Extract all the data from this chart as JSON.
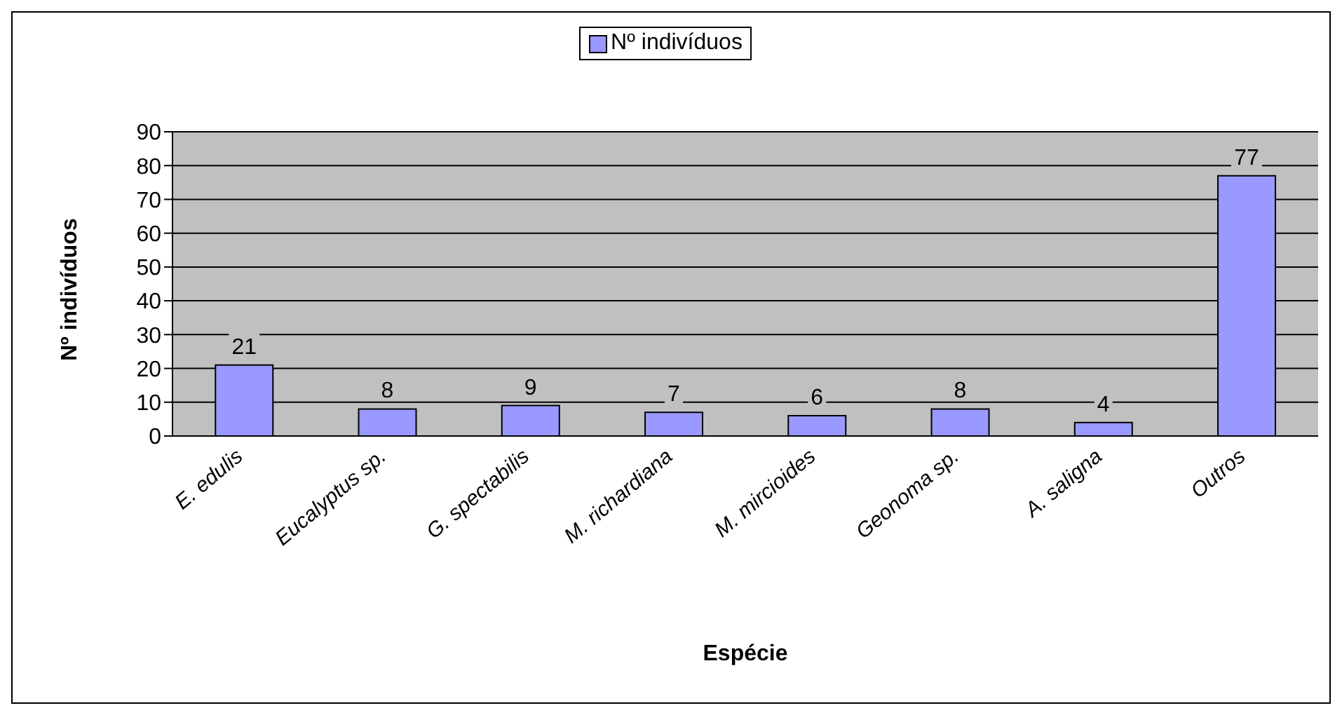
{
  "chart_data": {
    "type": "bar",
    "xlabel": "Espécie",
    "ylabel": "Nº indivíduos",
    "categories": [
      "E. edulis",
      "Eucalyptus sp.",
      "G. spectabilis",
      "M. richardiana",
      "M. mircioides",
      "Geonoma sp.",
      "A. saligna",
      "Outros"
    ],
    "series": [
      {
        "name": "Nº indivíduos",
        "color": "#9999ff",
        "values": [
          21,
          8,
          9,
          7,
          6,
          8,
          4,
          77
        ]
      }
    ],
    "ylim": [
      0,
      90
    ],
    "yticks": [
      0,
      10,
      20,
      30,
      40,
      50,
      60,
      70,
      80,
      90
    ],
    "grid": "y",
    "legend": "top",
    "data_labels": true
  }
}
